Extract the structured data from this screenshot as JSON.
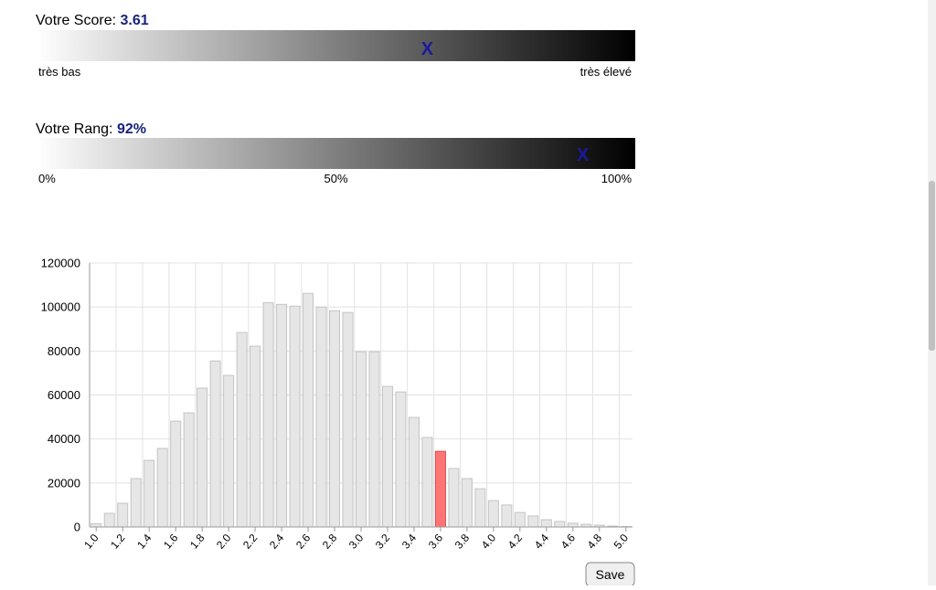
{
  "score": {
    "label": "Votre Score:",
    "value": 3.61,
    "marker": "X",
    "low": "très bas",
    "high": "très élevé"
  },
  "rank": {
    "label": "Votre Rang:",
    "value": {
      "value": 92,
      "label": "92%"
    },
    "marker": "X",
    "ticks": [
      {
        "value": 0,
        "label": "0%"
      },
      {
        "value": 50,
        "label": "50%"
      },
      {
        "value": 100,
        "label": "100%"
      }
    ]
  },
  "chart_data": {
    "type": "bar",
    "categories": [
      "1.0",
      null,
      "1.2",
      null,
      "1.4",
      null,
      "1.6",
      null,
      "1.8",
      null,
      "2.0",
      null,
      "2.2",
      null,
      "2.4",
      null,
      "2.6",
      null,
      "2.8",
      null,
      "3.0",
      null,
      "3.2",
      null,
      "3.4",
      null,
      "3.6",
      null,
      "3.8",
      null,
      "4.0",
      null,
      "4.2",
      null,
      "4.4",
      null,
      "4.6",
      null,
      "4.8",
      null,
      "5.0"
    ],
    "values": [
      1500,
      6200,
      10800,
      22000,
      30300,
      35700,
      48100,
      51900,
      63100,
      75500,
      68900,
      88400,
      82200,
      102000,
      101200,
      100400,
      106200,
      100000,
      98300,
      97500,
      79700,
      79700,
      63900,
      61400,
      49800,
      40700,
      34400,
      26600,
      22000,
      17400,
      12000,
      10000,
      6600,
      5000,
      3300,
      2500,
      1700,
      1200,
      800,
      400,
      200
    ],
    "colors": [
      "#e6e6e6",
      "#e6e6e6",
      "#e6e6e6",
      "#e6e6e6",
      "#e6e6e6",
      "#e6e6e6",
      "#e6e6e6",
      "#e6e6e6",
      "#e6e6e6",
      "#e6e6e6",
      "#e6e6e6",
      "#e6e6e6",
      "#e6e6e6",
      "#e6e6e6",
      "#e6e6e6",
      "#e6e6e6",
      "#e6e6e6",
      "#e6e6e6",
      "#e6e6e6",
      "#e6e6e6",
      "#e6e6e6",
      "#e6e6e6",
      "#e6e6e6",
      "#e6e6e6",
      "#e6e6e6",
      "#e6e6e6",
      "#ff7575",
      "#e6e6e6",
      "#e6e6e6",
      "#e6e6e6",
      "#e6e6e6",
      "#e6e6e6",
      "#e6e6e6",
      "#e6e6e6",
      "#e6e6e6",
      "#e6e6e6",
      "#e6e6e6",
      "#e6e6e6",
      "#e6e6e6",
      "#e6e6e6",
      "#e6e6e6"
    ],
    "ylim": [
      0,
      120000
    ],
    "yticks": [
      0,
      20000,
      40000,
      60000,
      80000,
      100000,
      120000
    ],
    "grid": true
  },
  "save_button": "Save"
}
